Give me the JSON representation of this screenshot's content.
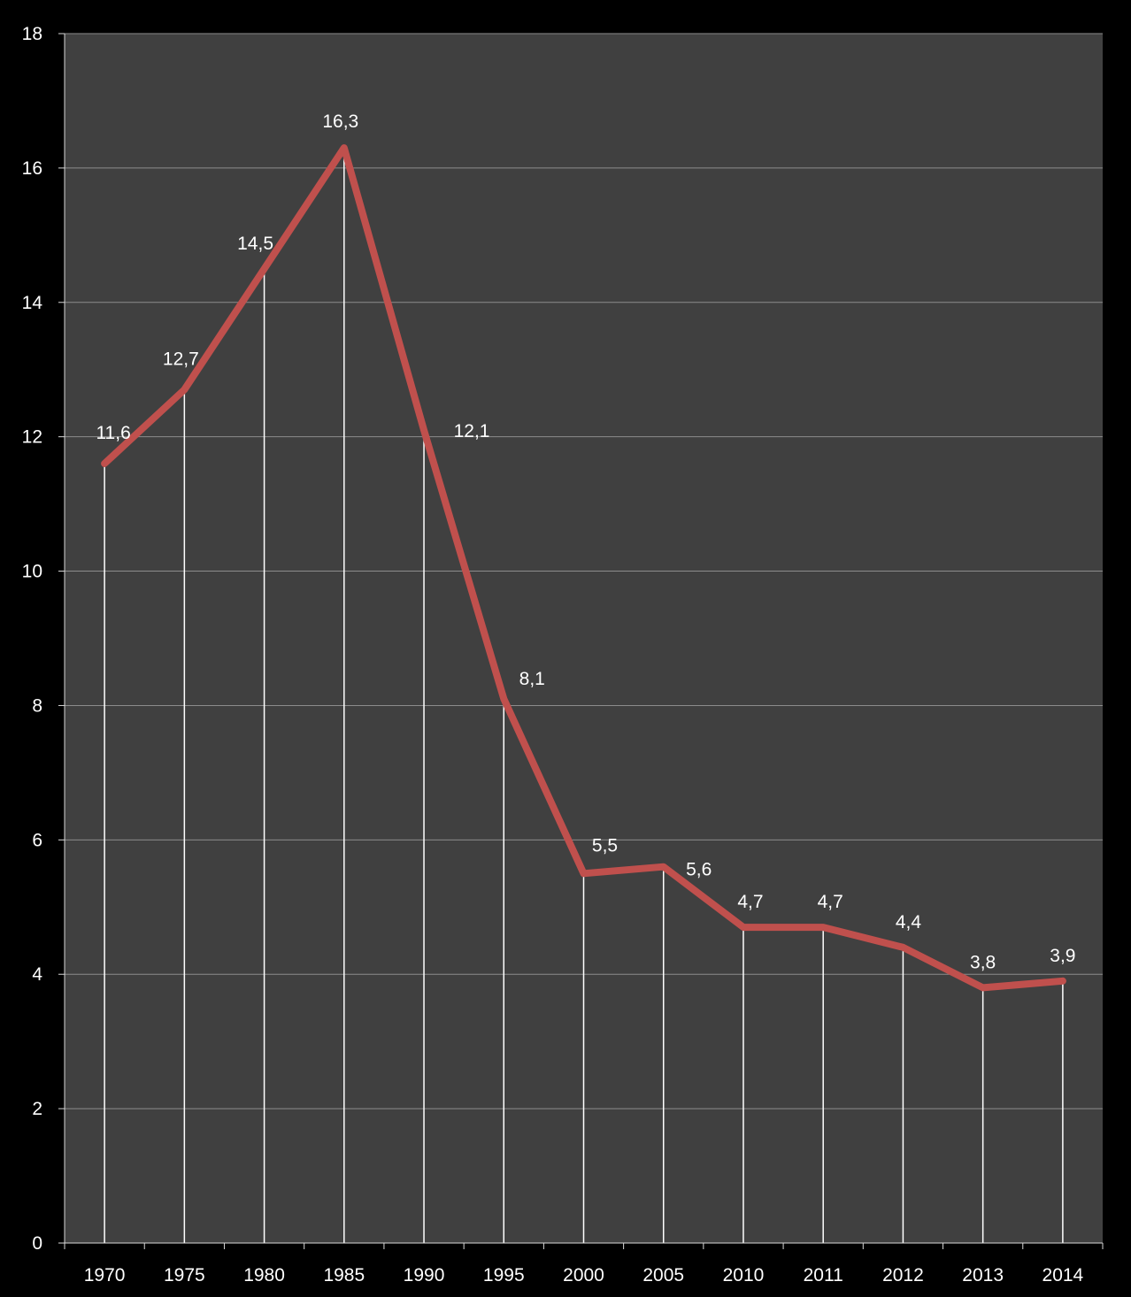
{
  "colors": {
    "background": "#000000",
    "plot_area": "#404040",
    "gridline": "#8c8c8c",
    "axis": "#d9d9d9",
    "drop_line": "#ffffff",
    "series_line": "#c0504d",
    "text": "#ffffff"
  },
  "chart_data": {
    "type": "line",
    "title": "",
    "xlabel": "",
    "ylabel": "",
    "categories": [
      "1970",
      "1975",
      "1980",
      "1985",
      "1990",
      "1995",
      "2000",
      "2005",
      "2010",
      "2011",
      "2012",
      "2013",
      "2014"
    ],
    "series": [
      {
        "values": [
          11.6,
          12.7,
          14.5,
          16.3,
          12.1,
          8.1,
          5.5,
          5.6,
          4.7,
          4.7,
          4.4,
          3.8,
          3.9
        ],
        "labels": [
          "11,6",
          "12,7",
          "14,5",
          "16,3",
          "12,1",
          "8,1",
          "5,5",
          "5,6",
          "4,7",
          "4,7",
          "4,4",
          "3,8",
          "3,9"
        ]
      }
    ],
    "ylim": [
      0,
      18
    ],
    "yticks": [
      "0",
      "2",
      "4",
      "6",
      "8",
      "10",
      "12",
      "14",
      "16",
      "18"
    ],
    "grid": true,
    "drop_lines": true,
    "legend": "none"
  }
}
